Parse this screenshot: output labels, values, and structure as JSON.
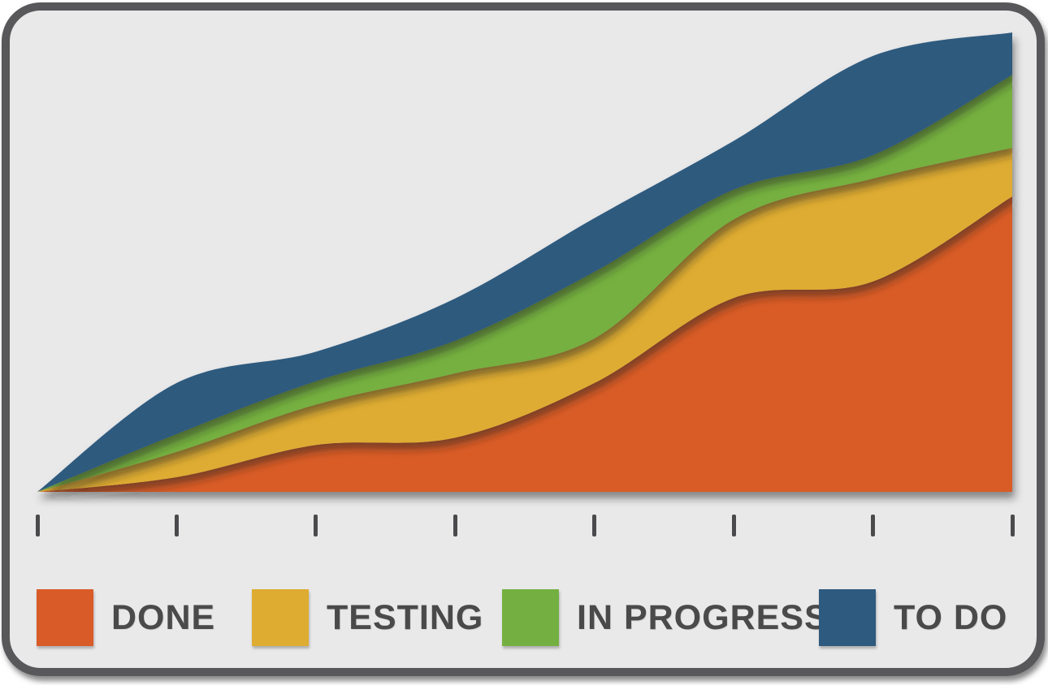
{
  "card": {
    "background_color": "#E9E9EA",
    "border_color": "#58585A"
  },
  "axis": {
    "tick_count": 8,
    "tick_color": "#4A4A4C",
    "labels_visible": false
  },
  "legend": {
    "position": "bottom",
    "text_color": "#4A4A4B",
    "items": [
      {
        "label": "DONE",
        "color": "#D95B28"
      },
      {
        "label": "TESTING",
        "color": "#DEAC30"
      },
      {
        "label": "IN PROGRESS",
        "color": "#74B041"
      },
      {
        "label": "TO DO",
        "color": "#2D5A7E"
      }
    ]
  },
  "chart_data": {
    "type": "area",
    "stacked": true,
    "title": "",
    "xlabel": "",
    "ylabel": "",
    "x": [
      1,
      2,
      3,
      4,
      5,
      6,
      7,
      8
    ],
    "x_tick_labels": [
      "",
      "",
      "",
      "",
      "",
      "",
      "",
      ""
    ],
    "y_axis_visible": false,
    "y_units": "relative amount of work (unlabeled axis, 0-100 scale)",
    "ylim": [
      0,
      100
    ],
    "grid": false,
    "legend_position": "bottom",
    "series": [
      {
        "name": "DONE",
        "color": "#D95B28",
        "values": [
          0,
          3.2,
          10.2,
          11.8,
          23.7,
          42.2,
          45.8,
          64.3
        ]
      },
      {
        "name": "TESTING",
        "color": "#DEAC30",
        "values": [
          0,
          5.5,
          8.8,
          14.0,
          9.7,
          17.1,
          22.4,
          10.6
        ]
      },
      {
        "name": "IN PROGRESS",
        "color": "#74B041",
        "values": [
          0,
          3.9,
          5.1,
          7.1,
          14.5,
          6.5,
          5.1,
          15.9
        ]
      },
      {
        "name": "TO DO",
        "color": "#2D5A7E",
        "values": [
          0,
          11.1,
          6.4,
          9.2,
          11.7,
          10.6,
          21.6,
          9.2
        ]
      }
    ],
    "stack_totals": [
      0,
      23.7,
      30.5,
      42.1,
      59.6,
      76.4,
      94.9,
      100
    ]
  }
}
